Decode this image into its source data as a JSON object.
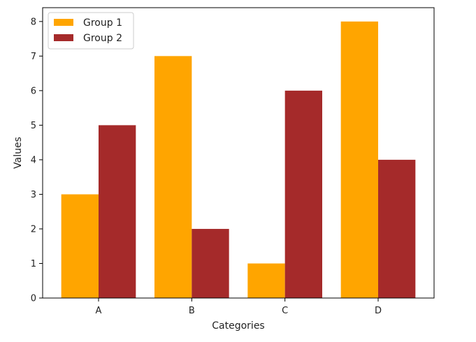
{
  "chart_data": {
    "type": "bar",
    "title": "",
    "xlabel": "Categories",
    "ylabel": "Values",
    "categories": [
      "A",
      "B",
      "C",
      "D"
    ],
    "series": [
      {
        "name": "Group 1",
        "values": [
          3,
          7,
          1,
          8
        ],
        "color": "#ffa500"
      },
      {
        "name": "Group 2",
        "values": [
          5,
          2,
          6,
          4
        ],
        "color": "#a52a2a"
      }
    ],
    "ylim": [
      0,
      8.4
    ],
    "yticks": [
      0,
      1,
      2,
      3,
      4,
      5,
      6,
      7,
      8
    ],
    "legend": "top-left",
    "grid": false
  }
}
